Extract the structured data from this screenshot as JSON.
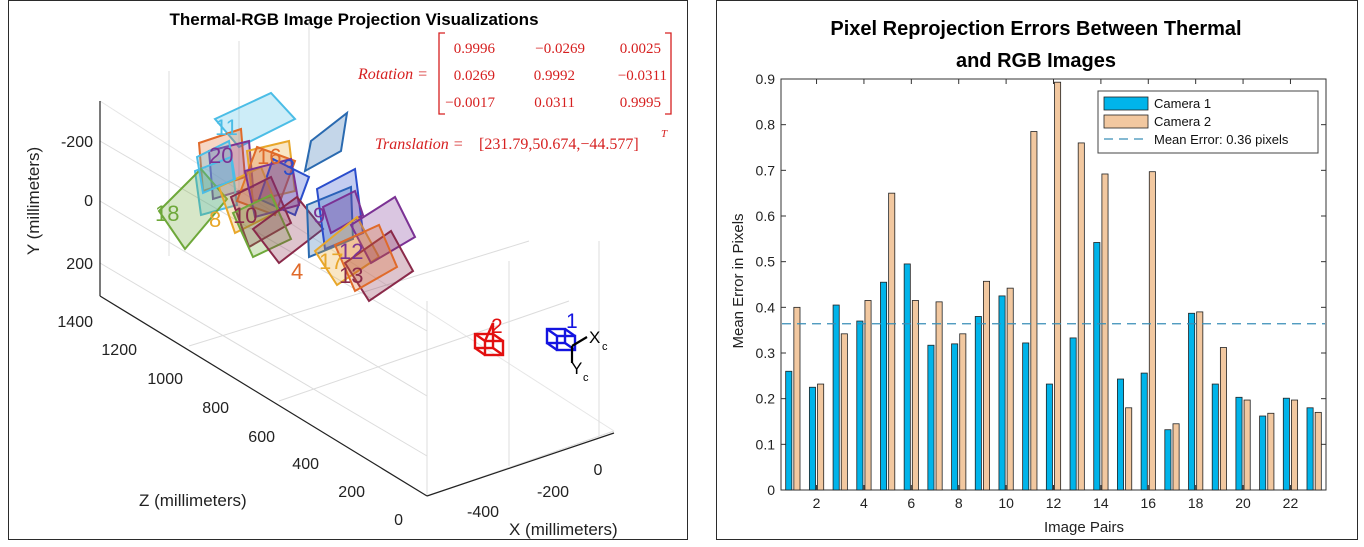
{
  "left_figure": {
    "title": "Thermal-RGB Image Projection Visualizations",
    "y_axis_label": "Y (millimeters)",
    "z_axis_label": "Z (millimeters)",
    "x_axis_label": "X (millimeters)",
    "y_ticks": [
      "-200",
      "0",
      "200"
    ],
    "z_ticks": [
      "1400",
      "1200",
      "1000",
      "800",
      "600",
      "400",
      "200",
      "0"
    ],
    "x_ticks": [
      "0",
      "-200",
      "-400"
    ],
    "rotation_label": "Rotation =",
    "rotation_matrix": [
      [
        "0.9996",
        "−0.0269",
        "0.0025"
      ],
      [
        "0.0269",
        "0.9992",
        "−0.0311"
      ],
      [
        "−0.0017",
        "0.0311",
        "0.9995"
      ]
    ],
    "translation_label": "Translation =",
    "translation_value": "[231.79,50.674,−44.577]",
    "translation_superscript": "T",
    "camera_labels": [
      "2",
      "1"
    ],
    "camera_axis_labels": [
      "X",
      "c",
      "Y",
      "c"
    ],
    "board_labels": [
      "11",
      "20",
      "16",
      "3",
      "18",
      "8",
      "10",
      "9",
      "4",
      "17",
      "12",
      "13"
    ]
  },
  "chart_data": {
    "type": "bar",
    "title_line1": "Pixel Reprojection Errors Between Thermal",
    "title_line2": "and RGB Images",
    "xlabel": "Image Pairs",
    "ylabel": "Mean Error in Pixels",
    "x": [
      1,
      2,
      3,
      4,
      5,
      6,
      7,
      8,
      9,
      10,
      11,
      12,
      13,
      14,
      15,
      16,
      17,
      18,
      19,
      20,
      21,
      22,
      23
    ],
    "x_tick_labels": [
      "2",
      "4",
      "6",
      "8",
      "10",
      "12",
      "14",
      "16",
      "18",
      "20",
      "22"
    ],
    "ylim": [
      0,
      0.9
    ],
    "y_tick_labels": [
      "0",
      "0.1",
      "0.2",
      "0.3",
      "0.4",
      "0.5",
      "0.6",
      "0.7",
      "0.8",
      "0.9"
    ],
    "series": [
      {
        "name": "Camera 1",
        "color": "#00B4EA",
        "values": [
          0.26,
          0.225,
          0.405,
          0.37,
          0.455,
          0.495,
          0.317,
          0.32,
          0.38,
          0.425,
          0.322,
          0.232,
          0.333,
          0.542,
          0.243,
          0.256,
          0.132,
          0.387,
          0.232,
          0.203,
          0.162,
          0.201,
          0.18
        ]
      },
      {
        "name": "Camera 2",
        "color": "#F2C8A0",
        "values": [
          0.4,
          0.232,
          0.342,
          0.415,
          0.65,
          0.415,
          0.412,
          0.342,
          0.457,
          0.442,
          0.785,
          0.893,
          0.76,
          0.692,
          0.18,
          0.697,
          0.145,
          0.39,
          0.312,
          0.197,
          0.168,
          0.197,
          0.17
        ]
      }
    ],
    "mean_line": {
      "label": "Mean Error: 0.36 pixels",
      "value": 0.364,
      "color": "#3A8FB7"
    },
    "legend_position": "top-right",
    "grid": false
  }
}
